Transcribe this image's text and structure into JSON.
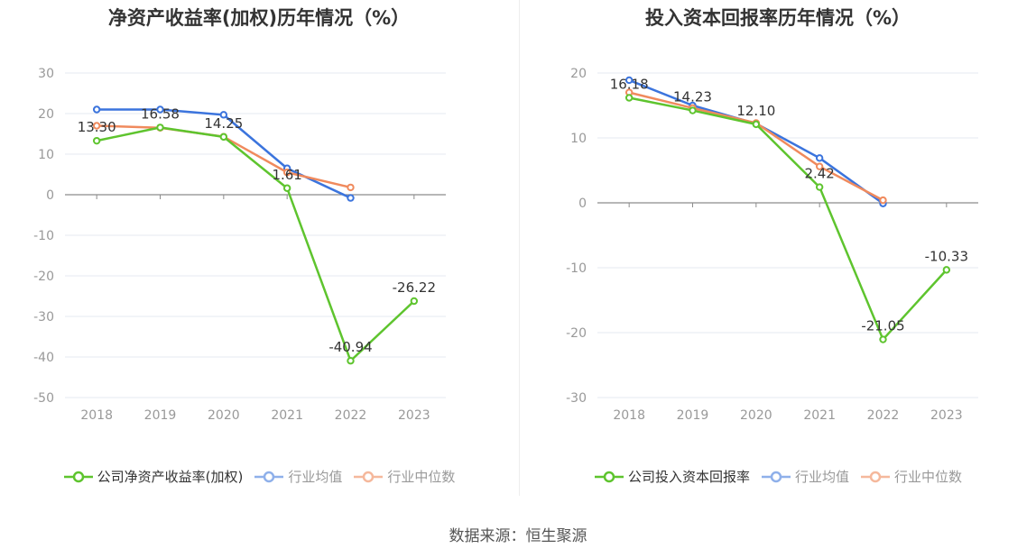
{
  "source_text": "数据来源：恒生聚源",
  "chart_data": [
    {
      "type": "line",
      "title": "净资产收益率(加权)历年情况（%）",
      "categories": [
        "2018",
        "2019",
        "2020",
        "2021",
        "2022",
        "2023"
      ],
      "ylim": [
        -50,
        30
      ],
      "yticks": [
        30,
        20,
        10,
        0,
        -10,
        -20,
        -30,
        -40,
        -50
      ],
      "grid": true,
      "legend_position": "bottom",
      "series": [
        {
          "name": "公司净资产收益率(加权)",
          "color": "#5ec42e",
          "values": [
            13.3,
            16.58,
            14.25,
            1.61,
            -40.94,
            -26.22
          ],
          "labels": [
            "13.30",
            "16.58",
            "14.25",
            "1.61",
            "-40.94",
            "-26.22"
          ],
          "show_labels": true
        },
        {
          "name": "行业均值",
          "color": "#3b74dd",
          "legend_color": "#8fb0ea",
          "values": [
            21.0,
            21.0,
            19.7,
            6.5,
            -0.8,
            null
          ]
        },
        {
          "name": "行业中位数",
          "color": "#f08a5d",
          "legend_color": "#f5b89c",
          "values": [
            17.0,
            16.5,
            14.3,
            5.5,
            1.8,
            null
          ]
        }
      ]
    },
    {
      "type": "line",
      "title": "投入资本回报率历年情况（%）",
      "categories": [
        "2018",
        "2019",
        "2020",
        "2021",
        "2022",
        "2023"
      ],
      "ylim": [
        -30,
        20
      ],
      "yticks": [
        20,
        10,
        0,
        -10,
        -20,
        -30
      ],
      "grid": true,
      "legend_position": "bottom",
      "series": [
        {
          "name": "公司投入资本回报率",
          "color": "#5ec42e",
          "values": [
            16.18,
            14.23,
            12.1,
            2.42,
            -21.05,
            -10.33
          ],
          "labels": [
            "16.18",
            "14.23",
            "12.10",
            "2.42",
            "-21.05",
            "-10.33"
          ],
          "show_labels": true
        },
        {
          "name": "行业均值",
          "color": "#3b74dd",
          "legend_color": "#8fb0ea",
          "values": [
            18.9,
            15.0,
            12.2,
            6.9,
            -0.1,
            null
          ]
        },
        {
          "name": "行业中位数",
          "color": "#f08a5d",
          "legend_color": "#f5b89c",
          "values": [
            17.0,
            14.6,
            12.3,
            5.6,
            0.4,
            null
          ]
        }
      ]
    }
  ]
}
